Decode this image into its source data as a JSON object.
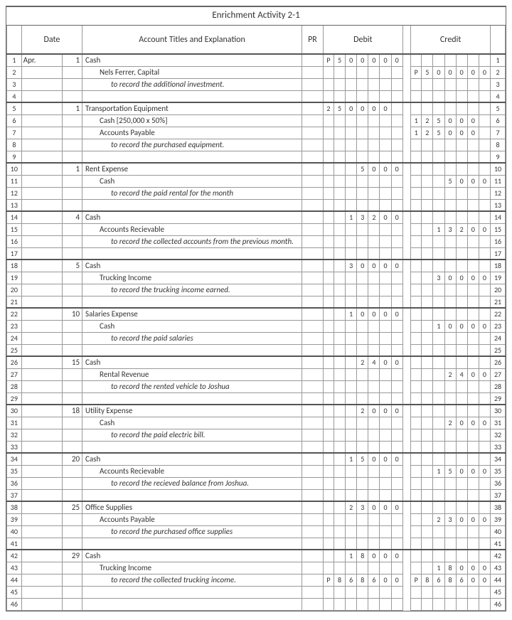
{
  "title": "Enrichment Activity 2-1",
  "headers": {
    "date": "Date",
    "acct": "Account Titles and Explanation",
    "pr": "PR",
    "debit": "Debit",
    "credit": "Credit"
  },
  "rows": [
    {
      "n": 1,
      "sep": true,
      "month": "Apr.",
      "day": "1",
      "acct": "Cash",
      "debit": "P500000",
      "credit": ""
    },
    {
      "n": 2,
      "acct": "Nels Ferrer, Capital",
      "indent": 1,
      "credit": "P500000",
      "debit": ""
    },
    {
      "n": 3,
      "acct": "to record the additional investment.",
      "indent": 2
    },
    {
      "n": 4
    },
    {
      "n": 5,
      "sep": true,
      "day": "1",
      "acct": "Transportation Equipment",
      "debit": "250000"
    },
    {
      "n": 6,
      "acct": "Cash [250,000 x 50%]",
      "indent": 1,
      "credit": "125000"
    },
    {
      "n": 7,
      "acct": "Accounts Payable",
      "indent": 1,
      "credit": "125000"
    },
    {
      "n": 8,
      "acct": "to record the purchased equipment.",
      "indent": 2
    },
    {
      "n": 9
    },
    {
      "n": 10,
      "sep": true,
      "day": "1",
      "acct": "Rent Expense",
      "debit": "5000",
      "dofs": 3
    },
    {
      "n": 11,
      "acct": "Cash",
      "indent": 1,
      "credit": "5000",
      "cofs": 3
    },
    {
      "n": 12,
      "acct": "to record the paid rental for the month",
      "indent": 2
    },
    {
      "n": 13
    },
    {
      "n": 14,
      "sep": true,
      "day": "4",
      "acct": "Cash",
      "debit": "13200",
      "dofs": 2
    },
    {
      "n": 15,
      "acct": "Accounts Recievable",
      "indent": 1,
      "credit": "13200",
      "cofs": 2
    },
    {
      "n": 16,
      "acct": "to record the collected accounts from the previous month.",
      "indent": 2
    },
    {
      "n": 17
    },
    {
      "n": 18,
      "sep": true,
      "day": "5",
      "acct": "Cash",
      "debit": "30000",
      "dofs": 2
    },
    {
      "n": 19,
      "acct": "Trucking Income",
      "indent": 1,
      "credit": "30000",
      "cofs": 2
    },
    {
      "n": 20,
      "acct": "to record the trucking income earned.",
      "indent": 2
    },
    {
      "n": 21
    },
    {
      "n": 22,
      "sep": true,
      "day": "10",
      "acct": "Salaries Expense",
      "debit": "10000",
      "dofs": 2
    },
    {
      "n": 23,
      "acct": "Cash",
      "indent": 1,
      "credit": "10000",
      "cofs": 2
    },
    {
      "n": 24,
      "acct": "to record the paid salaries",
      "indent": 2
    },
    {
      "n": 25
    },
    {
      "n": 26,
      "sep": true,
      "day": "15",
      "acct": "Cash",
      "debit": "2400",
      "dofs": 3
    },
    {
      "n": 27,
      "acct": "Rental Revenue",
      "indent": 1,
      "credit": "2400",
      "cofs": 3
    },
    {
      "n": 28,
      "acct": "to record the rented vehicle to Joshua",
      "indent": 2
    },
    {
      "n": 29
    },
    {
      "n": 30,
      "sep": true,
      "day": "18",
      "acct": "Utility Expense",
      "debit": "2000",
      "dofs": 3
    },
    {
      "n": 31,
      "acct": "Cash",
      "indent": 1,
      "credit": "2000",
      "cofs": 3
    },
    {
      "n": 32,
      "acct": "to record the paid electric bill.",
      "indent": 2
    },
    {
      "n": 33
    },
    {
      "n": 34,
      "sep": true,
      "day": "20",
      "acct": "Cash",
      "debit": "15000",
      "dofs": 2
    },
    {
      "n": 35,
      "acct": "Accounts Recievable",
      "indent": 1,
      "credit": "15000",
      "cofs": 2
    },
    {
      "n": 36,
      "acct": "to record the recieved balance from Joshua.",
      "indent": 2
    },
    {
      "n": 37
    },
    {
      "n": 38,
      "sep": true,
      "day": "25",
      "acct": "Office Supplies",
      "debit": "23000",
      "dofs": 2
    },
    {
      "n": 39,
      "acct": "Accounts Payable",
      "indent": 1,
      "credit": "23000",
      "cofs": 2
    },
    {
      "n": 40,
      "acct": "to record the purchased office supplies",
      "indent": 2
    },
    {
      "n": 41
    },
    {
      "n": 42,
      "sep": true,
      "day": "29",
      "acct": "Cash",
      "debit": "18000",
      "dofs": 2
    },
    {
      "n": 43,
      "acct": "Trucking Income",
      "indent": 1,
      "credit": "18000",
      "cofs": 2
    },
    {
      "n": 44,
      "acct": "to record the collected trucking income.",
      "indent": 2,
      "debit": "P868600",
      "credit": "P868600"
    },
    {
      "n": 45
    },
    {
      "n": 46
    }
  ]
}
